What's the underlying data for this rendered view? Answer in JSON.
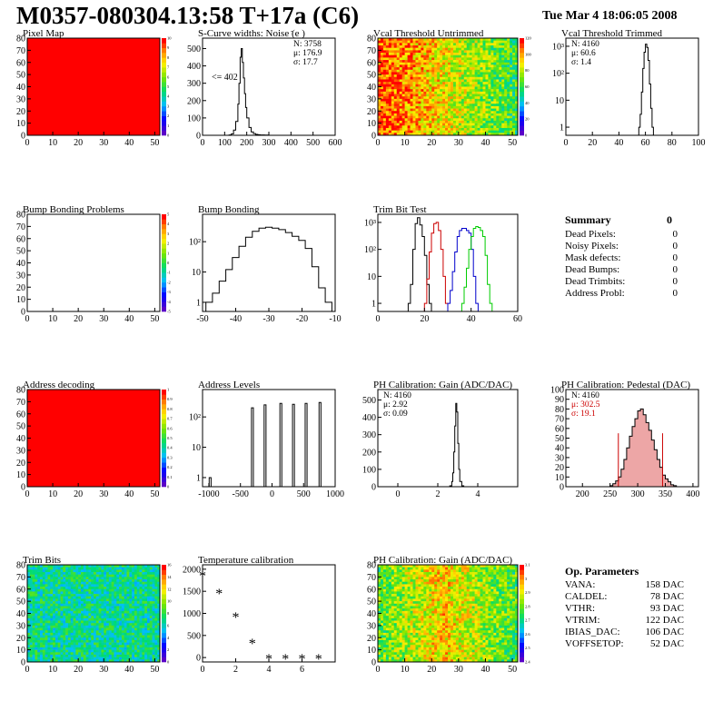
{
  "header": {
    "title": "M0357-080304.13:58 T+17a (C6)",
    "datetime": "Tue Mar  4 18:06:05 2008"
  },
  "colors": {
    "map_full": "#ff0000",
    "trim_series": [
      "#000000",
      "#cc0000",
      "#0000cc",
      "#00cc00"
    ],
    "pedestal_fit": "#cc0000",
    "pedestal_stats": "#cc0000"
  },
  "summary": {
    "heading": "Summary",
    "total": "0",
    "rows": [
      {
        "label": "Dead Pixels:",
        "value": "0"
      },
      {
        "label": "Noisy Pixels:",
        "value": "0"
      },
      {
        "label": "Mask defects:",
        "value": "0"
      },
      {
        "label": "Dead Bumps:",
        "value": "0"
      },
      {
        "label": "Dead Trimbits:",
        "value": "0"
      },
      {
        "label": "Address Probl:",
        "value": "0"
      }
    ]
  },
  "op_params": {
    "heading": "Op. Parameters",
    "rows": [
      {
        "label": "VANA:",
        "value": "158 DAC"
      },
      {
        "label": "CALDEL:",
        "value": "78 DAC"
      },
      {
        "label": "VTHR:",
        "value": "93 DAC"
      },
      {
        "label": "VTRIM:",
        "value": "122 DAC"
      },
      {
        "label": "IBIAS_DAC:",
        "value": "106 DAC"
      },
      {
        "label": "VOFFSETOP:",
        "value": "52 DAC"
      }
    ]
  },
  "chart_data": [
    {
      "id": "pixel-map",
      "type": "heatmap",
      "title": "Pixel Map",
      "fill": "uniform-max",
      "xlim": [
        0,
        52
      ],
      "ylim": [
        0,
        80
      ],
      "xticks": [
        "0",
        "10",
        "20",
        "30",
        "40",
        "50"
      ],
      "yticks": [
        "0",
        "10",
        "20",
        "30",
        "40",
        "50",
        "60",
        "70",
        "80"
      ],
      "zticks": [
        "0",
        "1",
        "2",
        "3",
        "4",
        "5",
        "6",
        "7",
        "8",
        "9",
        "10"
      ]
    },
    {
      "id": "scurve-widths",
      "type": "line",
      "title": "S-Curve widths: Noise (e )",
      "title_sup": "-",
      "xlim": [
        0,
        600
      ],
      "ylim": [
        0,
        560
      ],
      "xticks": [
        "0",
        "100",
        "200",
        "300",
        "400",
        "500",
        "600"
      ],
      "yticks": [
        "0",
        "100",
        "200",
        "300",
        "400",
        "500"
      ],
      "stats": [
        "N: 3758",
        "μ: 176.9",
        "σ: 17.7"
      ],
      "annotation": "<= 402",
      "x": [
        110,
        120,
        130,
        140,
        150,
        160,
        165,
        170,
        175,
        180,
        185,
        190,
        195,
        200,
        210,
        220,
        230,
        240,
        250,
        260,
        280,
        300
      ],
      "y": [
        0,
        2,
        8,
        30,
        80,
        180,
        300,
        450,
        500,
        420,
        330,
        240,
        160,
        100,
        45,
        20,
        10,
        5,
        3,
        2,
        1,
        0
      ]
    },
    {
      "id": "vcal-untrimmed",
      "type": "heatmap",
      "title": "Vcal Threshold Untrimmed",
      "fill": "gradient-left-high",
      "xlim": [
        0,
        52
      ],
      "ylim": [
        0,
        80
      ],
      "xticks": [
        "0",
        "10",
        "20",
        "30",
        "40",
        "50"
      ],
      "yticks": [
        "0",
        "10",
        "20",
        "30",
        "40",
        "50",
        "60",
        "70",
        "80"
      ],
      "zticks": [
        "0",
        "20",
        "40",
        "60",
        "80",
        "100",
        "120"
      ]
    },
    {
      "id": "vcal-trimmed",
      "type": "line",
      "title": "Vcal Threshold Trimmed",
      "logy": true,
      "xlim": [
        0,
        100
      ],
      "ylim": [
        0.5,
        2000
      ],
      "xticks": [
        "0",
        "20",
        "40",
        "60",
        "80",
        "100"
      ],
      "yticks": [
        "1",
        "10",
        "10²",
        "10³"
      ],
      "stats": [
        "N: 4160",
        "μ: 60.6",
        "σ:  1.4"
      ],
      "x": [
        55,
        56,
        57,
        58,
        59,
        60,
        61,
        62,
        63,
        64,
        65,
        66
      ],
      "y": [
        1,
        3,
        20,
        150,
        600,
        1200,
        900,
        300,
        40,
        5,
        1,
        0.5
      ]
    },
    {
      "id": "bump-problems",
      "type": "heatmap",
      "title": "Bump Bonding Problems",
      "fill": "empty",
      "xlim": [
        0,
        52
      ],
      "ylim": [
        0,
        80
      ],
      "xticks": [
        "0",
        "10",
        "20",
        "30",
        "40",
        "50"
      ],
      "yticks": [
        "0",
        "10",
        "20",
        "30",
        "40",
        "50",
        "60",
        "70",
        "80"
      ],
      "zticks": [
        "-5",
        "-4",
        "-3",
        "-2",
        "-1",
        "0",
        "1",
        "2",
        "3",
        "4",
        "5"
      ]
    },
    {
      "id": "bump-bonding",
      "type": "line",
      "title": "Bump Bonding",
      "logy": true,
      "xlim": [
        -50,
        -10
      ],
      "ylim": [
        0.5,
        800
      ],
      "xticks": [
        "-50",
        "-40",
        "-30",
        "-20",
        "-10"
      ],
      "yticks": [
        "1",
        "10",
        "10²"
      ],
      "x": [
        -49,
        -47,
        -45,
        -43,
        -41,
        -39,
        -37,
        -35,
        -33,
        -31,
        -29,
        -27,
        -25,
        -23,
        -21,
        -19,
        -17,
        -15,
        -13
      ],
      "y": [
        1,
        2,
        5,
        12,
        30,
        70,
        140,
        220,
        280,
        300,
        280,
        250,
        200,
        150,
        110,
        60,
        15,
        3,
        1
      ]
    },
    {
      "id": "trim-bit-test",
      "type": "line",
      "title": "Trim Bit Test",
      "logy": true,
      "xlim": [
        0,
        60
      ],
      "ylim": [
        0.5,
        2000
      ],
      "xticks": [
        "0",
        "20",
        "40",
        "60"
      ],
      "yticks": [
        "1",
        "10",
        "10²",
        "10³"
      ],
      "series": [
        {
          "x": [
            13,
            14,
            15,
            16,
            17,
            18,
            19,
            20,
            21,
            22
          ],
          "y": [
            1,
            5,
            100,
            900,
            1500,
            800,
            300,
            60,
            5,
            1
          ]
        },
        {
          "x": [
            20,
            21,
            22,
            23,
            24,
            25,
            26,
            27,
            28,
            29
          ],
          "y": [
            1,
            8,
            80,
            400,
            900,
            1000,
            500,
            100,
            10,
            1
          ]
        },
        {
          "x": [
            30,
            31,
            32,
            33,
            34,
            35,
            36,
            37,
            38,
            39,
            40,
            41,
            42
          ],
          "y": [
            1,
            3,
            15,
            80,
            300,
            500,
            600,
            600,
            500,
            400,
            100,
            10,
            1
          ]
        },
        {
          "x": [
            36,
            37,
            38,
            39,
            40,
            41,
            42,
            43,
            44,
            45,
            46,
            47,
            48
          ],
          "y": [
            1,
            4,
            20,
            100,
            300,
            600,
            700,
            650,
            500,
            300,
            60,
            5,
            1
          ]
        }
      ]
    },
    {
      "id": "address-decoding",
      "type": "heatmap",
      "title": "Address decoding",
      "fill": "uniform-max",
      "xlim": [
        0,
        52
      ],
      "ylim": [
        0,
        80
      ],
      "xticks": [
        "0",
        "10",
        "20",
        "30",
        "40",
        "50"
      ],
      "yticks": [
        "0",
        "10",
        "20",
        "30",
        "40",
        "50",
        "60",
        "70",
        "80"
      ],
      "zticks": [
        "0",
        "0.1",
        "0.2",
        "0.3",
        "0.4",
        "0.5",
        "0.6",
        "0.7",
        "0.8",
        "0.9",
        "1"
      ]
    },
    {
      "id": "address-levels",
      "type": "line",
      "title": "Address Levels",
      "logy": true,
      "xlim": [
        -1100,
        1000
      ],
      "ylim": [
        0.5,
        800
      ],
      "xticks": [
        "-1000",
        "-500",
        "0",
        "500",
        "1000"
      ],
      "yticks": [
        "1",
        "10",
        "10²"
      ],
      "peaks": [
        {
          "x": -980,
          "y": 1
        },
        {
          "x": -310,
          "y": 200
        },
        {
          "x": -110,
          "y": 250
        },
        {
          "x": 140,
          "y": 280
        },
        {
          "x": 340,
          "y": 260
        },
        {
          "x": 540,
          "y": 280
        },
        {
          "x": 760,
          "y": 300
        }
      ]
    },
    {
      "id": "ph-gain",
      "type": "line",
      "title": "PH Calibration: Gain (ADC/DAC)",
      "xlim": [
        -1,
        6
      ],
      "ylim": [
        0,
        560
      ],
      "xticks": [
        "0",
        "2",
        "4"
      ],
      "yticks": [
        "0",
        "100",
        "200",
        "300",
        "400",
        "500"
      ],
      "stats": [
        "N: 4160",
        "μ: 2.92",
        "σ: 0.09"
      ],
      "x": [
        2.5,
        2.6,
        2.7,
        2.75,
        2.8,
        2.85,
        2.9,
        2.95,
        3.0,
        3.05,
        3.1,
        3.2,
        3.3
      ],
      "y": [
        0,
        5,
        30,
        80,
        200,
        350,
        480,
        430,
        250,
        100,
        30,
        5,
        0
      ]
    },
    {
      "id": "ph-pedestal",
      "type": "line",
      "title": "PH Calibration: Pedestal (DAC)",
      "xlim": [
        170,
        410
      ],
      "ylim": [
        0,
        100
      ],
      "xticks": [
        "200",
        "250",
        "300",
        "350",
        "400"
      ],
      "yticks": [
        "0",
        "10",
        "20",
        "30",
        "40",
        "50",
        "60",
        "70",
        "80",
        "90",
        "100"
      ],
      "stats": [
        "N: 4160",
        "μ: 302.5",
        "σ: 19.1"
      ],
      "fit_bounds": [
        265,
        345
      ],
      "x": [
        250,
        255,
        260,
        265,
        270,
        275,
        280,
        285,
        290,
        295,
        300,
        305,
        310,
        315,
        320,
        325,
        330,
        335,
        340,
        345,
        350,
        355,
        360,
        365
      ],
      "y": [
        1,
        3,
        6,
        10,
        18,
        28,
        40,
        52,
        62,
        70,
        78,
        80,
        74,
        66,
        58,
        48,
        38,
        28,
        20,
        12,
        8,
        5,
        2,
        1
      ]
    },
    {
      "id": "trim-bits",
      "type": "heatmap",
      "title": "Trim Bits",
      "fill": "noise-mid",
      "xlim": [
        0,
        52
      ],
      "ylim": [
        0,
        80
      ],
      "xticks": [
        "0",
        "10",
        "20",
        "30",
        "40",
        "50"
      ],
      "yticks": [
        "0",
        "10",
        "20",
        "30",
        "40",
        "50",
        "60",
        "70",
        "80"
      ],
      "zticks": [
        "0",
        "2",
        "4",
        "6",
        "8",
        "10",
        "12",
        "14",
        "16"
      ]
    },
    {
      "id": "temperature-calibration",
      "type": "scatter",
      "title": "Temperature calibration",
      "xlim": [
        0,
        8
      ],
      "ylim": [
        -100,
        2100
      ],
      "xticks": [
        "0",
        "2",
        "4",
        "6"
      ],
      "yticks": [
        "0",
        "500",
        "1000",
        "1500",
        "2000"
      ],
      "x": [
        0,
        1,
        2,
        3,
        4,
        5,
        6,
        7
      ],
      "y": [
        1880,
        1480,
        950,
        350,
        0,
        0,
        0,
        0
      ]
    },
    {
      "id": "ph-gain-map",
      "type": "heatmap",
      "title": "PH Calibration: Gain (ADC/DAC)",
      "fill": "noise-center-high",
      "xlim": [
        0,
        52
      ],
      "ylim": [
        0,
        80
      ],
      "xticks": [
        "0",
        "10",
        "20",
        "30",
        "40",
        "50"
      ],
      "yticks": [
        "0",
        "10",
        "20",
        "30",
        "40",
        "50",
        "60",
        "70",
        "80"
      ],
      "zticks": [
        "2.4",
        "2.5",
        "2.6",
        "2.7",
        "2.8",
        "2.9",
        "3",
        "3.1"
      ]
    }
  ]
}
